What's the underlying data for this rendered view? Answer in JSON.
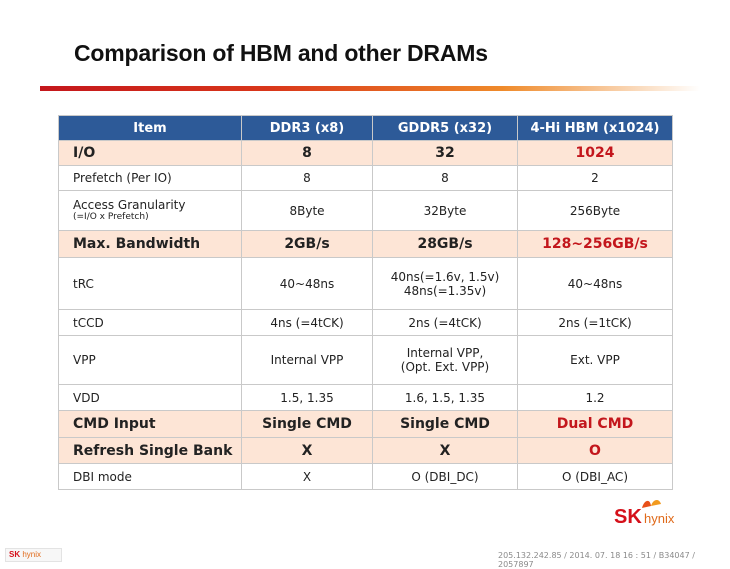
{
  "title": "Comparison of HBM and other DRAMs",
  "header": [
    "Item",
    "DDR3 (x8)",
    "GDDR5 (x32)",
    "4-Hi HBM (x1024)"
  ],
  "rows": [
    {
      "item": "I/O",
      "sub": "",
      "c1": "8",
      "c2": "32",
      "c3": "1024"
    },
    {
      "item": "Prefetch (Per IO)",
      "sub": "",
      "c1": "8",
      "c2": "8",
      "c3": "2"
    },
    {
      "item": "Access Granularity",
      "sub": "(=I/O x Prefetch)",
      "c1": "8Byte",
      "c2": "32Byte",
      "c3": "256Byte"
    },
    {
      "item": "Max. Bandwidth",
      "sub": "",
      "c1": "2GB/s",
      "c2": "28GB/s",
      "c3": "128~256GB/s"
    },
    {
      "item": "tRC",
      "sub": "",
      "c1": "40~48ns",
      "c2": "40ns(=1.6v, 1.5v)",
      "c2b": "48ns(=1.35v)",
      "c3": "40~48ns"
    },
    {
      "item": "tCCD",
      "sub": "",
      "c1": "4ns (=4tCK)",
      "c2": "2ns (=4tCK)",
      "c3": "2ns (=1tCK)"
    },
    {
      "item": "VPP",
      "sub": "",
      "c1": "Internal VPP",
      "c2": "Internal VPP,",
      "c2b": "(Opt. Ext. VPP)",
      "c3": "Ext. VPP"
    },
    {
      "item": "VDD",
      "sub": "",
      "c1": "1.5, 1.35",
      "c2": "1.6, 1.5, 1.35",
      "c3": "1.2"
    },
    {
      "item": "CMD Input",
      "sub": "",
      "c1": "Single CMD",
      "c2": "Single CMD",
      "c3": "Dual CMD"
    },
    {
      "item": "Refresh Single Bank",
      "sub": "",
      "c1": "X",
      "c2": "X",
      "c3": "O"
    },
    {
      "item": "DBI mode",
      "sub": "",
      "c1": "X",
      "c2": "O (DBI_DC)",
      "c3": "O (DBI_AC)"
    }
  ],
  "logo": {
    "sk": "SK",
    "hynix": "hynix"
  },
  "footer": {
    "logo_sk": "SK",
    "logo_hynix": "hynix",
    "stamp": "205.132.242.85 / 2014. 07. 18  16 : 51 / B34047 / 2057897"
  },
  "colors": {
    "header_bg": "#2d5a98",
    "highlight_bg": "#fde5d6",
    "accent_red": "#c3161c"
  }
}
